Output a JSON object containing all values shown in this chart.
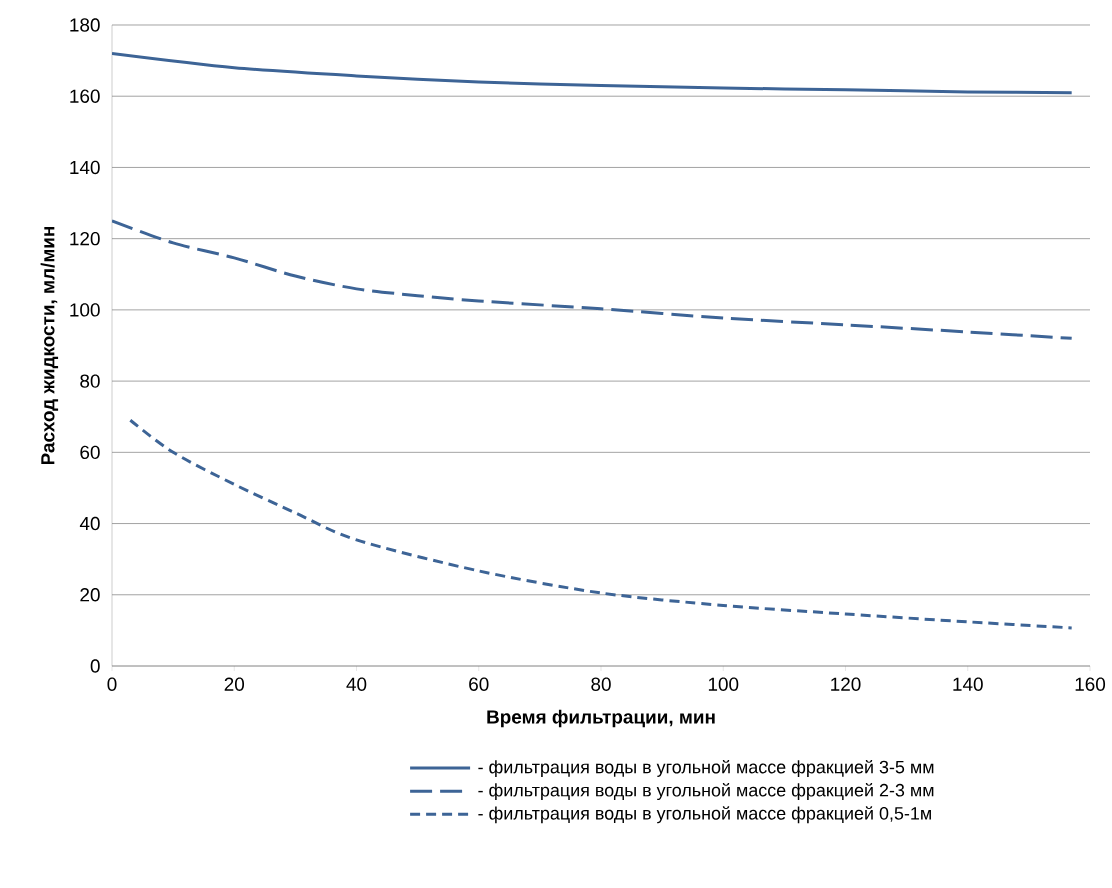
{
  "chart_data": {
    "type": "line",
    "xlabel": "Время фильтрации, мин",
    "ylabel": "Расход жидкости, мл/мин",
    "xlim": [
      0,
      160
    ],
    "ylim": [
      0,
      180
    ],
    "xticks": [
      0,
      20,
      40,
      60,
      80,
      100,
      120,
      140,
      160
    ],
    "yticks": [
      0,
      20,
      40,
      60,
      80,
      100,
      120,
      140,
      160,
      180
    ],
    "grid": "y",
    "legend": "bottom",
    "marker": "none",
    "series": [
      {
        "name": "- фильтрация воды в угольной массе фракцией 3-5 мм",
        "color": "#3d6496",
        "line_style": "solid",
        "x": [
          0,
          20,
          40,
          60,
          80,
          100,
          120,
          140,
          157
        ],
        "values": [
          172,
          168,
          165.7,
          164,
          163,
          162.3,
          161.8,
          161.2,
          161
        ]
      },
      {
        "name": "- фильтрация воды в угольной массе фракцией 2-3 мм",
        "color": "#3d6496",
        "line_style": "dashed",
        "x": [
          0,
          10,
          20,
          30,
          40,
          50,
          60,
          80,
          100,
          120,
          140,
          157
        ],
        "values": [
          125,
          118.8,
          114.6,
          109.5,
          105.9,
          104,
          102.5,
          100.3,
          97.7,
          95.8,
          93.8,
          92
        ]
      },
      {
        "name": "- фильтрация воды в угольной массе фракцией 0,5-1м",
        "color": "#3d6496",
        "line_style": "dashed",
        "x": [
          3,
          10,
          20,
          30,
          40,
          60,
          80,
          100,
          120,
          140,
          157
        ],
        "values": [
          69,
          60,
          51,
          43,
          35.4,
          26.7,
          20.5,
          17,
          14.6,
          12.4,
          10.7
        ]
      }
    ]
  }
}
